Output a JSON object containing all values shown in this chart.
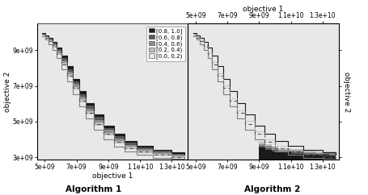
{
  "xlim": [
    4500000000.0,
    14000000000.0
  ],
  "ylim": [
    2850000000.0,
    10500000000.0
  ],
  "xlabel": "objective 1",
  "ylabel_left": "objective 2",
  "ylabel_right": "objective 2",
  "title_top": "objective 1",
  "label_alg1": "Algorithm 1",
  "label_alg2": "Algorithm 2",
  "legend_labels": [
    "[0.8, 1.0]",
    "[0.6, 0.8)",
    "[0.4, 0.6)",
    "[0.2, 0.4)",
    "[0.0, 0.2)"
  ],
  "legend_colors": [
    "#1a1a1a",
    "#595959",
    "#8c8c8c",
    "#c0c0c0",
    "#e8e8e8"
  ],
  "bg_color": "#e8e8e8",
  "fig_bg": "#ffffff",
  "line_outer_color": "#7f7f7f",
  "line_inner_color": "#1a1a1a",
  "line_dashed_color": "#555555",
  "line_dotted_color": "#999999",
  "xtick_labels": [
    "5e+09",
    "7e+09",
    "9e+09",
    "1.1e+10",
    "1.3e+10"
  ],
  "xtick_vals": [
    5000000000.0,
    7000000000.0,
    9000000000.0,
    11000000000.0,
    13000000000.0
  ],
  "ytick_labels": [
    "3e+09",
    "5e+09",
    "7e+09",
    "9e+09"
  ],
  "ytick_vals": [
    3000000000.0,
    5000000000.0,
    7000000000.0,
    9000000000.0
  ]
}
